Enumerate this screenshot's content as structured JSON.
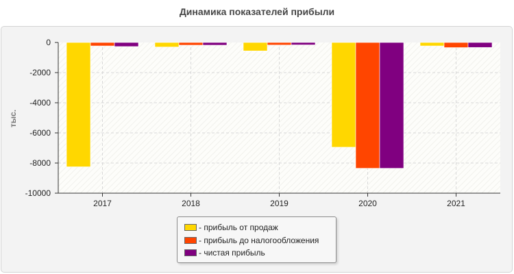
{
  "chart_data": {
    "type": "bar",
    "title": "Динамика показателей прибыли",
    "xlabel": "",
    "ylabel": "тыс.",
    "categories": [
      "2017",
      "2018",
      "2019",
      "2020",
      "2021"
    ],
    "ylim": [
      -10000,
      0
    ],
    "yticks": [
      "0",
      "-2000",
      "-4000",
      "-6000",
      "-8000",
      "-10000"
    ],
    "grid": true,
    "legend_position": "bottom-center",
    "series": [
      {
        "name": "- прибыль от продаж",
        "color": "#FFD700",
        "values": [
          -8250,
          -300,
          -560,
          -6950,
          -230
        ]
      },
      {
        "name": "- прибыль до налогообложения",
        "color": "#FF4500",
        "values": [
          -230,
          -180,
          -170,
          -8350,
          -340
        ]
      },
      {
        "name": "- чистая прибыль",
        "color": "#800080",
        "values": [
          -270,
          -180,
          -160,
          -8350,
          -330
        ]
      }
    ]
  }
}
